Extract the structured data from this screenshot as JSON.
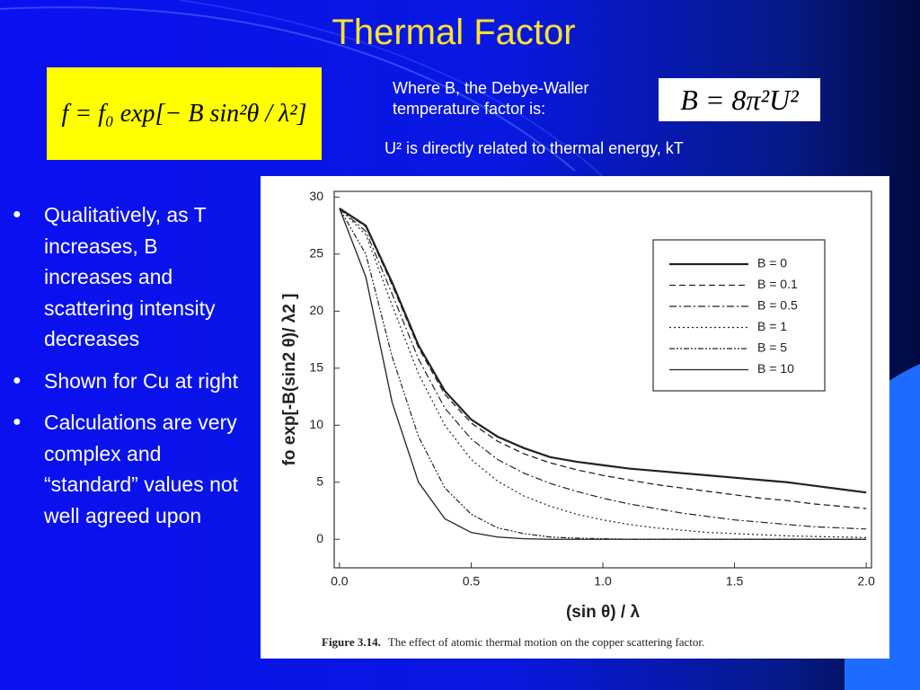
{
  "title": "Thermal Factor",
  "formula_scattering": "f = f₀ exp[− B sin²θ / λ²]",
  "debye_waller_text": "Where B, the Debye-Waller temperature factor is:",
  "formula_b": "B = 8π²U²",
  "u_note": "U² is directly related to thermal energy, kT",
  "bullets": [
    "Qualitatively, as T increases, B increases and scattering intensity decreases",
    "Shown for Cu at right",
    "Calculations are very complex and “standard” values not well agreed upon"
  ],
  "chart_data": {
    "type": "line",
    "x_label": "(sin θ) / λ",
    "y_label": "fo exp[-B(sin2 θ)/ λ2 ]",
    "caption_label": "Figure 3.14.",
    "caption": "The effect of atomic thermal motion on the copper scattering factor.",
    "x": [
      0,
      0.1,
      0.2,
      0.3,
      0.4,
      0.5,
      0.6,
      0.7,
      0.8,
      0.9,
      1.0,
      1.1,
      1.2,
      1.3,
      1.4,
      1.5,
      1.6,
      1.7,
      1.8,
      1.9,
      2.0
    ],
    "xlim": [
      -0.02,
      2.02
    ],
    "xticks": [
      {
        "value": 0,
        "label": "0.0"
      },
      0.5,
      {
        "value": 1,
        "label": "1.0"
      },
      1.5,
      {
        "value": 2,
        "label": "2.0"
      }
    ],
    "ylim": [
      -2.5,
      30.5
    ],
    "yticks": [
      0,
      5,
      10,
      15,
      20,
      25,
      30
    ],
    "legend": "upper right",
    "series": [
      {
        "name": "B = 0",
        "color": "#222222",
        "dash": "solid-thick",
        "values": [
          29,
          27.5,
          22.5,
          17,
          13,
          10.5,
          9,
          8,
          7.2,
          6.8,
          6.5,
          6.2,
          6,
          5.8,
          5.6,
          5.4,
          5.2,
          5,
          4.7,
          4.4,
          4.1
        ]
      },
      {
        "name": "B = 0.1",
        "color": "#222222",
        "dash": "dashed",
        "values": [
          29,
          27.4,
          22.3,
          16.8,
          12.7,
          10.2,
          8.6,
          7.5,
          6.7,
          6.1,
          5.6,
          5.2,
          4.8,
          4.5,
          4.2,
          3.9,
          3.6,
          3.4,
          3.1,
          2.9,
          2.7
        ]
      },
      {
        "name": "B = 0.5",
        "color": "#222222",
        "dash": "dash-dot",
        "values": [
          29,
          27,
          21.5,
          15.8,
          11.5,
          8.8,
          7,
          5.8,
          4.9,
          4.2,
          3.6,
          3.1,
          2.7,
          2.3,
          2,
          1.7,
          1.5,
          1.3,
          1.1,
          1,
          0.9
        ]
      },
      {
        "name": "B = 1",
        "color": "#222222",
        "dash": "dotted",
        "values": [
          29,
          26.7,
          20.5,
          14.5,
          10,
          7,
          5.1,
          3.8,
          2.9,
          2.2,
          1.7,
          1.3,
          1,
          0.8,
          0.6,
          0.5,
          0.4,
          0.3,
          0.25,
          0.2,
          0.15
        ]
      },
      {
        "name": "B = 5",
        "color": "#222222",
        "dash": "dash-dot-dot",
        "values": [
          29,
          25,
          16,
          9,
          4.5,
          2.2,
          1,
          0.5,
          0.2,
          0.1,
          0.05,
          0,
          0,
          0,
          0,
          0,
          0,
          0,
          0,
          0,
          0
        ]
      },
      {
        "name": "B = 10",
        "color": "#222222",
        "dash": "solid",
        "values": [
          29,
          23,
          12,
          5,
          1.8,
          0.6,
          0.2,
          0.05,
          0,
          0,
          0,
          0,
          0,
          0,
          0,
          0,
          0,
          0,
          0,
          0,
          0
        ]
      }
    ]
  }
}
